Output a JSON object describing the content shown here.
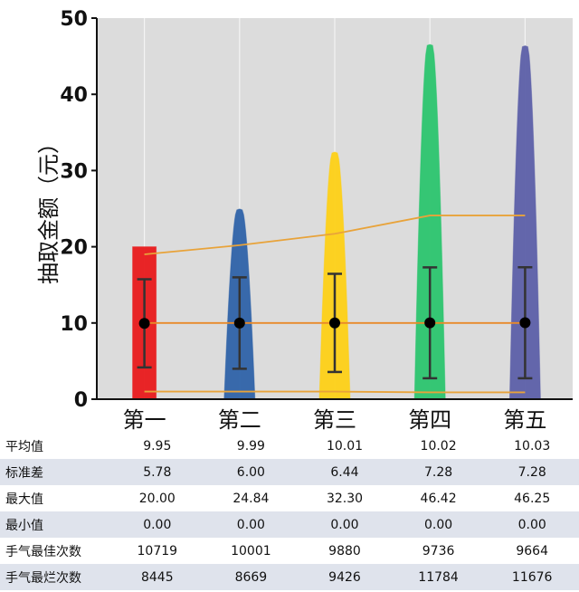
{
  "chart_data": {
    "type": "violin",
    "ylabel": "抽取金额（元）",
    "ylim": [
      0,
      50
    ],
    "yticks": [
      0,
      10,
      20,
      30,
      40,
      50
    ],
    "grid": true,
    "categories": [
      "第一",
      "第二",
      "第三",
      "第四",
      "第五"
    ],
    "colors": [
      "#e8191b",
      "#2e62a8",
      "#fdd016",
      "#2bc46e",
      "#5c5fa8"
    ],
    "means": [
      9.95,
      9.99,
      10.01,
      10.02,
      10.03
    ],
    "std": [
      5.78,
      6.0,
      6.44,
      7.28,
      7.28
    ],
    "max": [
      20.0,
      24.84,
      32.3,
      46.42,
      46.25
    ],
    "min": [
      0.0,
      0.0,
      0.0,
      0.0,
      0.0
    ],
    "lines": {
      "upper": [
        19,
        20.2,
        21.7,
        24.1,
        24.1
      ],
      "middle": [
        10,
        10,
        10,
        10,
        10
      ],
      "lower": [
        1,
        1,
        1,
        0.9,
        0.9
      ]
    }
  },
  "table": {
    "rows": [
      {
        "label": "平均值",
        "values": [
          "9.95",
          "9.99",
          "10.01",
          "10.02",
          "10.03"
        ]
      },
      {
        "label": "标准差",
        "values": [
          "5.78",
          "6.00",
          "6.44",
          "7.28",
          "7.28"
        ]
      },
      {
        "label": "最大值",
        "values": [
          "20.00",
          "24.84",
          "32.30",
          "46.42",
          "46.25"
        ]
      },
      {
        "label": "最小值",
        "values": [
          "0.00",
          "0.00",
          "0.00",
          "0.00",
          "0.00"
        ]
      },
      {
        "label": "手气最佳次数",
        "values": [
          "10719",
          "10001",
          "9880",
          "9736",
          "9664"
        ]
      },
      {
        "label": "手气最烂次数",
        "values": [
          "8445",
          "8669",
          "9426",
          "11784",
          "11676"
        ]
      }
    ]
  }
}
